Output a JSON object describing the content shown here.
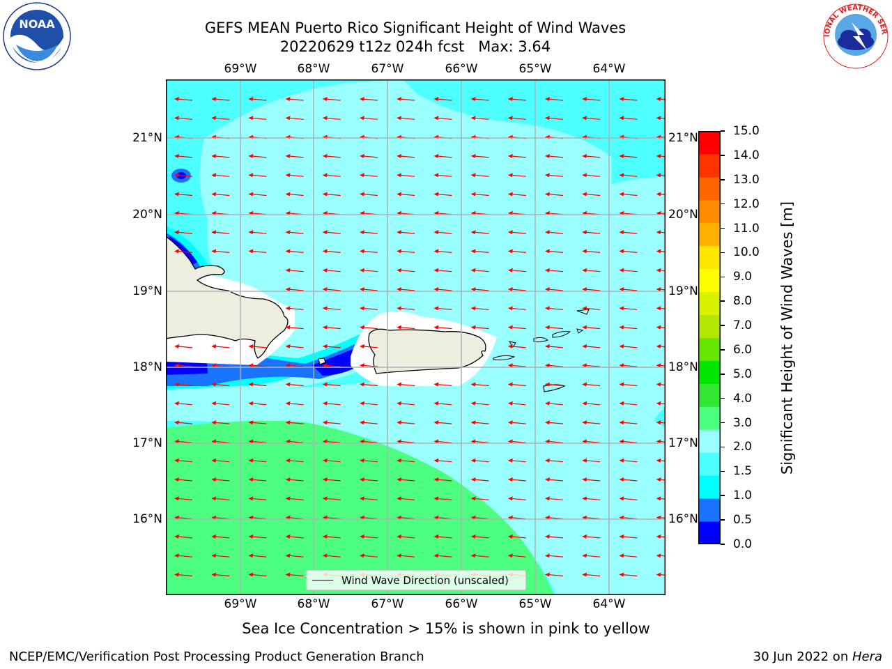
{
  "title": {
    "line1": "GEFS MEAN Puerto Rico Significant Height of Wind Waves",
    "line2": "20220629 t12z 024h fcst   Max: 3.64"
  },
  "map": {
    "lon_labels": [
      "69°W",
      "68°W",
      "67°W",
      "66°W",
      "65°W",
      "64°W"
    ],
    "lat_labels": [
      "21°N",
      "20°N",
      "19°N",
      "18°N",
      "17°N",
      "16°N"
    ],
    "legend_label": "Wind Wave Direction (unscaled)",
    "colors": {
      "land": "#eeeee0",
      "vector": "#ff0000",
      "grid": "#b0b0b0"
    }
  },
  "colorbar": {
    "label": "Significant Height of Wind Waves [m]",
    "ticks": [
      "0.0",
      "0.5",
      "1.0",
      "1.5",
      "2.0",
      "3.0",
      "4.0",
      "5.0",
      "6.0",
      "7.0",
      "8.0",
      "9.0",
      "10.0",
      "11.0",
      "12.0",
      "13.0",
      "14.0",
      "15.0"
    ],
    "colors": [
      "#0000ff",
      "#1a73ff",
      "#00ffff",
      "#4dffff",
      "#99ffff",
      "#4cff80",
      "#33e633",
      "#00e600",
      "#66e600",
      "#b3e600",
      "#d9f200",
      "#ffff00",
      "#ffe600",
      "#ffb300",
      "#ff8c00",
      "#ff6600",
      "#ff3300",
      "#ff0000"
    ]
  },
  "chart_data": {
    "type": "heatmap",
    "title": "GEFS MEAN Puerto Rico Significant Height of Wind Waves",
    "subtitle": "20220629 t12z 024h fcst   Max: 3.64",
    "lon_range": [
      -70,
      -63.25
    ],
    "lat_range": [
      15,
      21.75
    ],
    "max_value": 3.64,
    "units": "m",
    "wave_direction": "from east (arrows pointing west)"
  },
  "caption": "Sea Ice Concentration > 15% is shown in pink to yellow",
  "footer": {
    "left": "NCEP/EMC/Verification Post Processing Product Generation Branch",
    "right_date": "30 Jun 2022 on ",
    "right_host": "Hera"
  },
  "logos": {
    "noaa_text": "NOAA",
    "nws_text": "NATIONAL WEATHER SERVICE"
  }
}
